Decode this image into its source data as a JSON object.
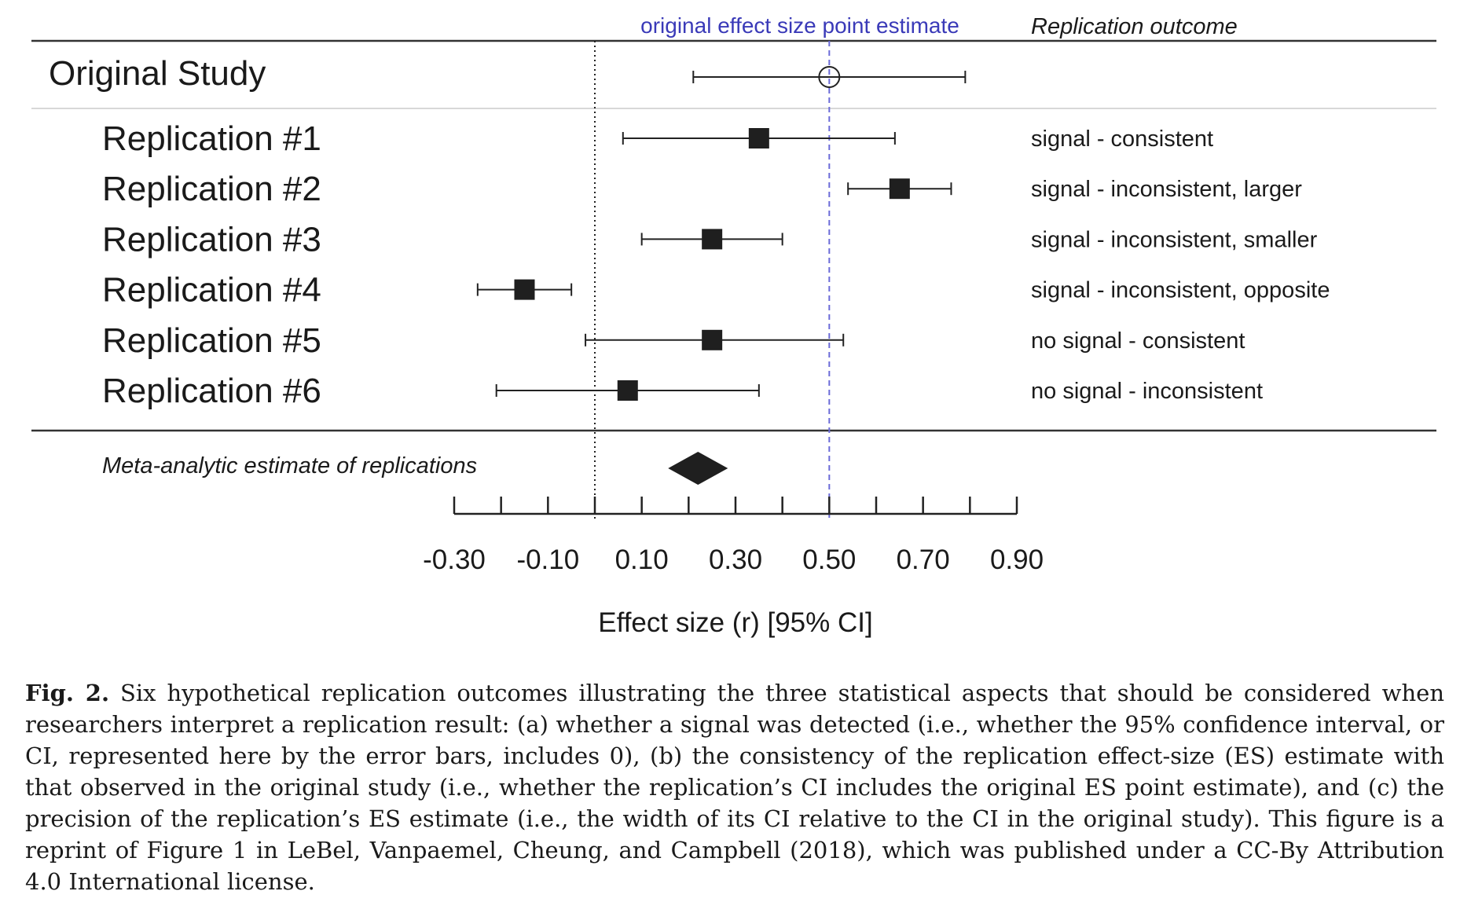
{
  "chart_data": {
    "type": "forest",
    "xlabel": "Effect size (r) [95% CI]",
    "xlim": [
      -0.3,
      0.9
    ],
    "ticks": [
      -0.3,
      -0.2,
      -0.1,
      0.0,
      0.1,
      0.2,
      0.3,
      0.4,
      0.5,
      0.6,
      0.7,
      0.8,
      0.9
    ],
    "tick_labels": [
      "-0.30",
      "-0.10",
      "0.10",
      "0.30",
      "0.50",
      "0.70",
      "0.90"
    ],
    "tick_label_values": [
      -0.3,
      -0.1,
      0.1,
      0.3,
      0.5,
      0.7,
      0.9
    ],
    "reference_line_label": "original effect size point estimate",
    "reference_value": 0.5,
    "zero_line": 0.0,
    "outcome_header": "Replication outcome",
    "original": {
      "label": "Original Study",
      "estimate": 0.5,
      "lower": 0.21,
      "upper": 0.79
    },
    "replications": [
      {
        "label": "Replication #1",
        "estimate": 0.35,
        "lower": 0.06,
        "upper": 0.64,
        "outcome": "signal - consistent"
      },
      {
        "label": "Replication #2",
        "estimate": 0.65,
        "lower": 0.54,
        "upper": 0.76,
        "outcome": "signal - inconsistent, larger"
      },
      {
        "label": "Replication #3",
        "estimate": 0.25,
        "lower": 0.1,
        "upper": 0.4,
        "outcome": "signal - inconsistent, smaller"
      },
      {
        "label": "Replication #4",
        "estimate": -0.15,
        "lower": -0.25,
        "upper": -0.05,
        "outcome": "signal - inconsistent, opposite"
      },
      {
        "label": "Replication #5",
        "estimate": 0.25,
        "lower": -0.02,
        "upper": 0.53,
        "outcome": "no signal - consistent"
      },
      {
        "label": "Replication #6",
        "estimate": 0.07,
        "lower": -0.21,
        "upper": 0.35,
        "outcome": "no signal - inconsistent"
      }
    ],
    "meta": {
      "label": "Meta-analytic estimate of replications",
      "estimate": 0.22
    }
  },
  "caption": {
    "figure_label": "Fig. 2.",
    "text": "Six hypothetical replication outcomes illustrating the three statistical aspects that should be considered when researchers interpret a replication result: (a) whether a signal was detected (i.e., whether the 95% confidence interval, or CI, represented here by the error bars, includes 0), (b) the consistency of the replication effect-size (ES) estimate with that observed in the original study (i.e., whether the replication’s CI includes the original ES point estimate), and (c) the precision of the replication’s ES estimate (i.e., the width of its CI relative to the CI in the original study). This figure is a reprint of Figure 1 in LeBel, Vanpaemel, Cheung, and Campbell (2018), which was published under a CC-By Attribution 4.0 International license."
  },
  "colors": {
    "reference_line": "#4a4ac8",
    "marks": "#1f1f1f",
    "rule": "#333333"
  }
}
